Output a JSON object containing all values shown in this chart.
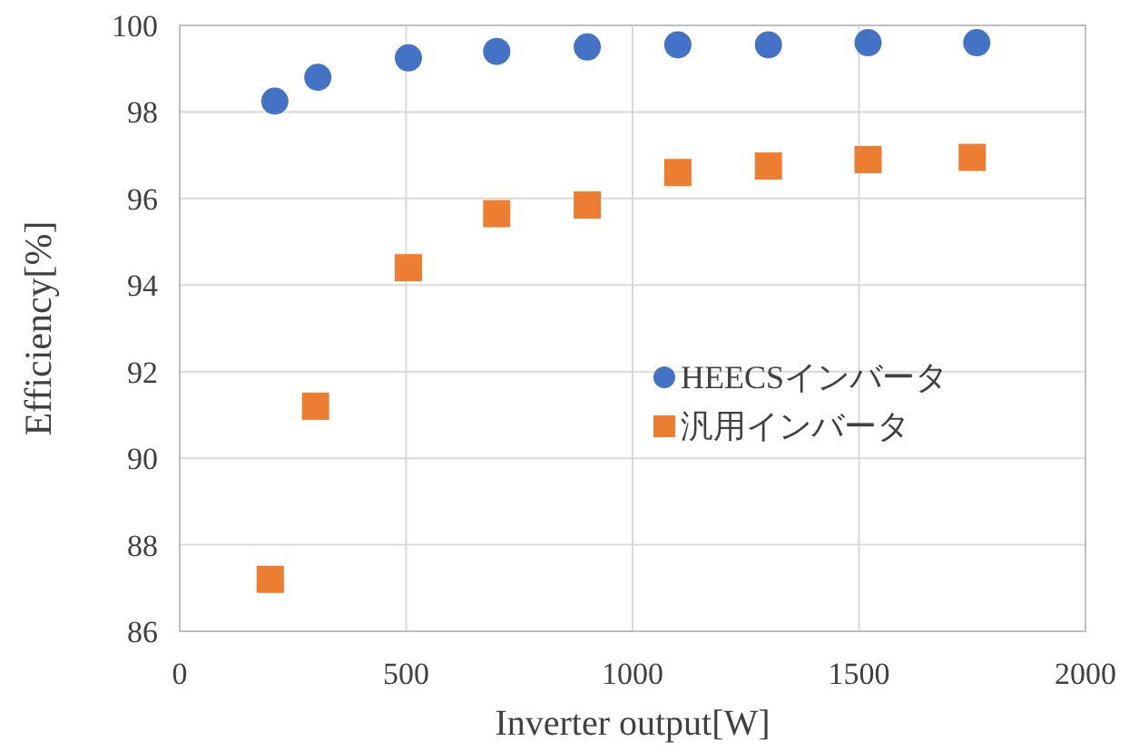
{
  "chart_data": {
    "type": "scatter",
    "xlabel": "Inverter output[W]",
    "ylabel": "Efficiency[%]",
    "xlim": [
      0,
      2000
    ],
    "xticks": [
      0,
      500,
      1000,
      1500,
      2000
    ],
    "ylim": [
      86,
      100
    ],
    "yticks": [
      86,
      88,
      90,
      92,
      94,
      96,
      98,
      100
    ],
    "grid": true,
    "legend": "right",
    "series": [
      {
        "name": "HEECSインバータ",
        "color": "#4472c4",
        "marker": "circle",
        "x": [
          210,
          305,
          505,
          700,
          900,
          1100,
          1300,
          1520,
          1760
        ],
        "values": [
          98.25,
          98.8,
          99.25,
          99.4,
          99.5,
          99.55,
          99.55,
          99.6,
          99.6
        ]
      },
      {
        "name": "汎用インバータ",
        "color": "#ed7d31",
        "marker": "square",
        "x": [
          200,
          300,
          505,
          700,
          900,
          1100,
          1300,
          1520,
          1750
        ],
        "values": [
          87.2,
          91.2,
          94.4,
          95.65,
          95.85,
          96.6,
          96.75,
          96.9,
          96.95
        ]
      }
    ]
  }
}
